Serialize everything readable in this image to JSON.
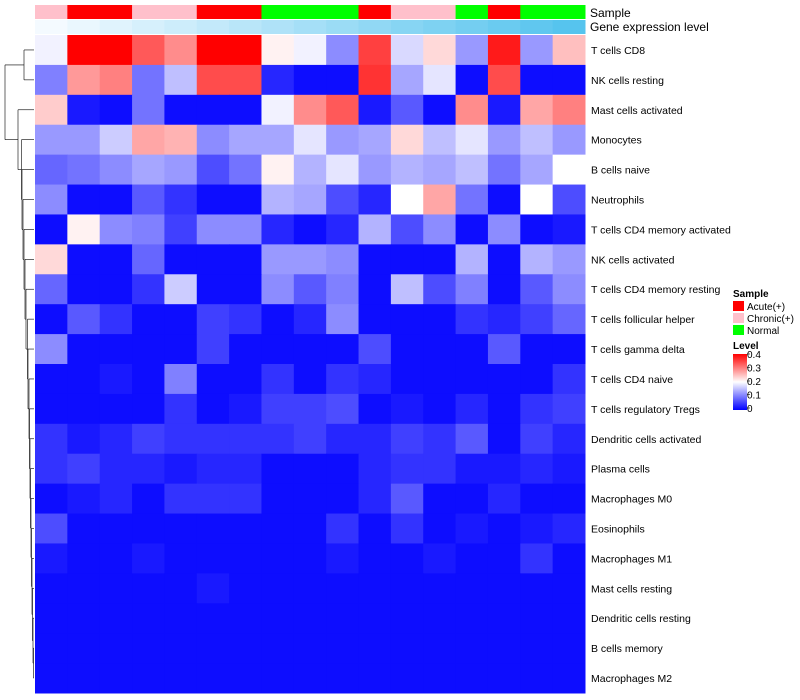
{
  "chart_data": {
    "type": "heatmap",
    "title": "",
    "annotations": {
      "sample_track_label": "Sample",
      "expression_track_label": "Gene expression level",
      "sample_groups": [
        "Chronic(+)",
        "Acute(+)",
        "Acute(+)",
        "Chronic(+)",
        "Chronic(+)",
        "Acute(+)",
        "Acute(+)",
        "Normal",
        "Normal",
        "Normal",
        "Acute(+)",
        "Chronic(+)",
        "Chronic(+)",
        "Normal",
        "Acute(+)",
        "Normal",
        "Normal"
      ],
      "expression_levels": [
        0.05,
        0.1,
        0.15,
        0.2,
        0.25,
        0.3,
        0.35,
        0.4,
        0.45,
        0.5,
        0.55,
        0.6,
        0.65,
        0.7,
        0.75,
        0.8,
        0.85
      ]
    },
    "rows": [
      "T cells CD8",
      "NK cells resting",
      "Mast cells activated",
      "Monocytes",
      "B cells naive",
      "Neutrophils",
      "T cells CD4 memory activated",
      "NK cells activated",
      "T cells CD4 memory resting",
      "T cells follicular helper",
      "T cells gamma delta",
      "T cells CD4 naive",
      "T cells regulatory  Tregs",
      "Dendritic cells activated",
      "Plasma cells",
      "Macrophages M0",
      "Eosinophils",
      "Macrophages M1",
      "Mast cells resting",
      "Dendritic cells resting",
      "B cells memory",
      "Macrophages M2"
    ],
    "values": [
      [
        0.19,
        0.4,
        0.4,
        0.33,
        0.29,
        0.4,
        0.4,
        0.21,
        0.19,
        0.11,
        0.35,
        0.17,
        0.23,
        0.12,
        0.38,
        0.12,
        0.25
      ],
      [
        0.1,
        0.28,
        0.3,
        0.09,
        0.15,
        0.34,
        0.34,
        0.03,
        0.01,
        0.01,
        0.36,
        0.13,
        0.18,
        0.01,
        0.34,
        0.01,
        0.01
      ],
      [
        0.24,
        0.02,
        0.01,
        0.09,
        0.01,
        0.01,
        0.01,
        0.19,
        0.29,
        0.33,
        0.02,
        0.07,
        0.01,
        0.29,
        0.02,
        0.27,
        0.3
      ],
      [
        0.12,
        0.12,
        0.16,
        0.27,
        0.26,
        0.11,
        0.13,
        0.13,
        0.18,
        0.12,
        0.13,
        0.23,
        0.15,
        0.18,
        0.12,
        0.15,
        0.12
      ],
      [
        0.08,
        0.09,
        0.11,
        0.13,
        0.12,
        0.06,
        0.09,
        0.21,
        0.14,
        0.18,
        0.12,
        0.14,
        0.13,
        0.15,
        0.09,
        0.13,
        0.2
      ],
      [
        0.11,
        0.01,
        0.01,
        0.07,
        0.04,
        0.01,
        0.01,
        0.14,
        0.13,
        0.06,
        0.03,
        0.2,
        0.27,
        0.09,
        0.01,
        0.2,
        0.06
      ],
      [
        0.01,
        0.21,
        0.11,
        0.1,
        0.05,
        0.11,
        0.11,
        0.03,
        0.01,
        0.03,
        0.14,
        0.06,
        0.11,
        0.01,
        0.11,
        0.01,
        0.02
      ],
      [
        0.23,
        0.01,
        0.01,
        0.08,
        0.01,
        0.01,
        0.01,
        0.12,
        0.12,
        0.11,
        0.01,
        0.01,
        0.01,
        0.14,
        0.01,
        0.14,
        0.12
      ],
      [
        0.08,
        0.01,
        0.01,
        0.04,
        0.16,
        0.01,
        0.01,
        0.11,
        0.07,
        0.1,
        0.01,
        0.15,
        0.06,
        0.1,
        0.01,
        0.07,
        0.11
      ],
      [
        0.01,
        0.07,
        0.04,
        0.01,
        0.01,
        0.05,
        0.04,
        0.01,
        0.03,
        0.11,
        0.01,
        0.01,
        0.01,
        0.04,
        0.03,
        0.05,
        0.08
      ],
      [
        0.11,
        0.01,
        0.01,
        0.01,
        0.01,
        0.05,
        0.01,
        0.01,
        0.01,
        0.01,
        0.06,
        0.01,
        0.01,
        0.01,
        0.07,
        0.01,
        0.01
      ],
      [
        0.01,
        0.01,
        0.02,
        0.01,
        0.1,
        0.01,
        0.01,
        0.04,
        0.01,
        0.04,
        0.03,
        0.01,
        0.01,
        0.01,
        0.01,
        0.01,
        0.04
      ],
      [
        0.01,
        0.01,
        0.01,
        0.01,
        0.04,
        0.01,
        0.02,
        0.05,
        0.05,
        0.06,
        0.01,
        0.02,
        0.01,
        0.03,
        0.01,
        0.04,
        0.05
      ],
      [
        0.04,
        0.02,
        0.03,
        0.05,
        0.04,
        0.04,
        0.04,
        0.04,
        0.05,
        0.03,
        0.03,
        0.05,
        0.04,
        0.07,
        0.01,
        0.05,
        0.03
      ],
      [
        0.04,
        0.05,
        0.03,
        0.03,
        0.02,
        0.03,
        0.03,
        0.01,
        0.01,
        0.01,
        0.03,
        0.04,
        0.04,
        0.02,
        0.02,
        0.03,
        0.02
      ],
      [
        0.01,
        0.02,
        0.03,
        0.01,
        0.04,
        0.04,
        0.04,
        0.01,
        0.01,
        0.01,
        0.03,
        0.07,
        0.01,
        0.01,
        0.03,
        0.01,
        0.01
      ],
      [
        0.06,
        0.01,
        0.01,
        0.01,
        0.01,
        0.01,
        0.01,
        0.01,
        0.01,
        0.04,
        0.01,
        0.04,
        0.01,
        0.02,
        0.01,
        0.02,
        0.03
      ],
      [
        0.02,
        0.01,
        0.01,
        0.02,
        0.01,
        0.01,
        0.01,
        0.01,
        0.01,
        0.02,
        0.01,
        0.01,
        0.02,
        0.01,
        0.01,
        0.04,
        0.01
      ],
      [
        0.01,
        0.01,
        0.01,
        0.01,
        0.01,
        0.02,
        0.01,
        0.01,
        0.01,
        0.01,
        0.01,
        0.01,
        0.01,
        0.01,
        0.01,
        0.01,
        0.01
      ],
      [
        0.01,
        0.01,
        0.01,
        0.01,
        0.01,
        0.01,
        0.01,
        0.01,
        0.01,
        0.01,
        0.01,
        0.01,
        0.01,
        0.01,
        0.01,
        0.01,
        0.01
      ],
      [
        0.01,
        0.01,
        0.01,
        0.01,
        0.01,
        0.01,
        0.01,
        0.01,
        0.01,
        0.01,
        0.01,
        0.01,
        0.01,
        0.01,
        0.01,
        0.01,
        0.01
      ],
      [
        0.01,
        0.01,
        0.01,
        0.01,
        0.01,
        0.01,
        0.01,
        0.01,
        0.01,
        0.01,
        0.01,
        0.01,
        0.01,
        0.01,
        0.01,
        0.01,
        0.01
      ]
    ],
    "color_scale": {
      "low": "#0000FF",
      "mid": "#FFFFFF",
      "high": "#FF0000",
      "range": [
        0,
        0.4
      ],
      "midpoint": 0.2
    },
    "legend": {
      "position": "right",
      "sample_title": "Sample",
      "sample_entries": [
        {
          "label": "Acute(+)",
          "color": "#FF0000"
        },
        {
          "label": "Chronic(+)",
          "color": "#FFC0CB"
        },
        {
          "label": "Normal",
          "color": "#00FF00"
        }
      ],
      "level_title": "Level",
      "level_ticks": [
        "0.4",
        "0.3",
        "0.2",
        "0.1",
        "0"
      ]
    },
    "expression_colors": {
      "low": "#F4FAFF",
      "high": "#56C4EE"
    }
  }
}
